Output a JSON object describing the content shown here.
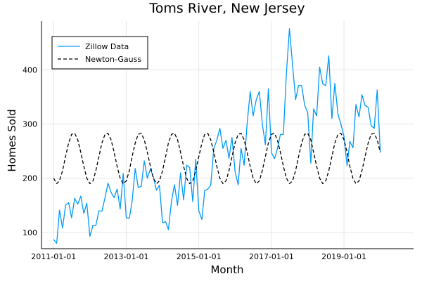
{
  "chart_data": {
    "type": "line",
    "title": "Toms River, New Jersey",
    "xlabel": "Month",
    "ylabel": "Homes Sold",
    "xlim": [
      "2010-09-01",
      "2020-12-01"
    ],
    "ylim": [
      70,
      490
    ],
    "x_ticks": [
      "2011-01-01",
      "2013-01-01",
      "2015-01-01",
      "2017-01-01",
      "2019-01-01"
    ],
    "y_ticks": [
      100,
      200,
      300,
      400
    ],
    "grid": true,
    "legend_position": "top-left",
    "series": [
      {
        "name": "Zillow Data",
        "style": "solid",
        "color": "#009af9",
        "start": "2011-01-01",
        "frequency": "monthly",
        "values": [
          87,
          80,
          141,
          108,
          150,
          155,
          127,
          163,
          152,
          167,
          135,
          154,
          93,
          113,
          113,
          140,
          139,
          164,
          191,
          174,
          164,
          180,
          143,
          209,
          127,
          126,
          158,
          218,
          183,
          185,
          232,
          200,
          217,
          202,
          178,
          187,
          118,
          120,
          105,
          158,
          188,
          150,
          210,
          160,
          224,
          220,
          157,
          235,
          140,
          124,
          177,
          180,
          187,
          255,
          270,
          292,
          255,
          270,
          237,
          275,
          212,
          188,
          255,
          224,
          300,
          360,
          315,
          345,
          360,
          300,
          262,
          365,
          247,
          236,
          254,
          281,
          281,
          395,
          476,
          410,
          345,
          371,
          371,
          335,
          321,
          228,
          328,
          315,
          405,
          374,
          371,
          426,
          310,
          375,
          318,
          300,
          277,
          223,
          268,
          256,
          336,
          313,
          354,
          334,
          331,
          297,
          292,
          363,
          248
        ]
      },
      {
        "name": "Newton-Gauss",
        "style": "dashed",
        "color": "#000000",
        "start": "2011-01-01",
        "frequency": "monthly",
        "values": [
          200,
          190,
          195,
          214,
          240,
          265,
          281,
          283,
          271,
          248,
          222,
          200,
          190,
          195,
          214,
          240,
          265,
          281,
          283,
          271,
          248,
          222,
          200,
          190,
          195,
          214,
          240,
          265,
          281,
          283,
          271,
          248,
          222,
          200,
          190,
          195,
          214,
          240,
          265,
          281,
          283,
          271,
          248,
          222,
          200,
          190,
          195,
          214,
          240,
          265,
          281,
          283,
          271,
          248,
          222,
          200,
          190,
          195,
          214,
          240,
          265,
          281,
          283,
          271,
          248,
          222,
          200,
          190,
          195,
          214,
          240,
          265,
          281,
          283,
          271,
          248,
          222,
          200,
          190,
          195,
          214,
          240,
          265,
          281,
          283,
          271,
          248,
          222,
          200,
          190,
          195,
          214,
          240,
          265,
          281,
          283,
          271,
          248,
          222,
          200,
          190,
          195,
          214,
          240,
          265,
          281,
          283,
          271,
          248
        ]
      }
    ]
  }
}
